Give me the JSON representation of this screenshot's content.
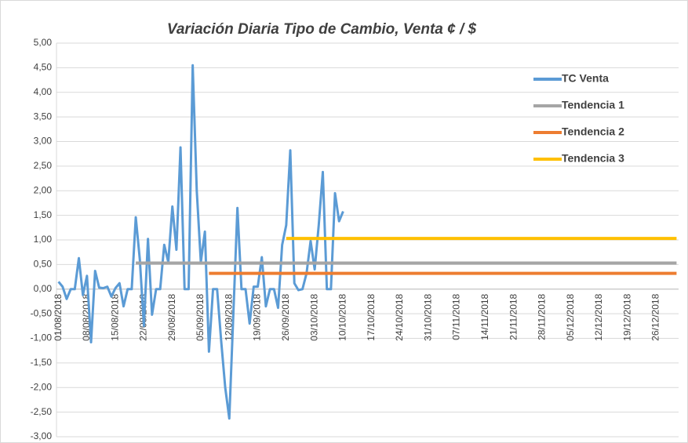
{
  "chart_data": {
    "type": "line",
    "title": "Variación Diaria Tipo de Cambio, Venta ¢ / $",
    "categories": [
      "01/08/2018",
      null,
      null,
      null,
      null,
      null,
      null,
      "08/08/2018",
      null,
      null,
      null,
      null,
      null,
      null,
      "15/08/2018",
      null,
      null,
      null,
      null,
      null,
      null,
      "22/08/2018",
      null,
      null,
      null,
      null,
      null,
      null,
      "29/08/2018",
      null,
      null,
      null,
      null,
      null,
      null,
      "05/09/2018",
      null,
      null,
      null,
      null,
      null,
      null,
      "12/09/2018",
      null,
      null,
      null,
      null,
      null,
      null,
      "19/09/2018",
      null,
      null,
      null,
      null,
      null,
      null,
      "26/09/2018",
      null,
      null,
      null,
      null,
      null,
      null,
      "03/10/2018",
      null,
      null,
      null,
      null,
      null,
      null,
      "10/10/2018",
      null,
      null,
      null,
      null,
      null,
      null,
      "17/10/2018",
      null,
      null,
      null,
      null,
      null,
      null,
      "24/10/2018",
      null,
      null,
      null,
      null,
      null,
      null,
      "31/10/2018",
      null,
      null,
      null,
      null,
      null,
      null,
      "07/11/2018",
      null,
      null,
      null,
      null,
      null,
      null,
      "14/11/2018",
      null,
      null,
      null,
      null,
      null,
      null,
      "21/11/2018",
      null,
      null,
      null,
      null,
      null,
      null,
      "28/11/2018",
      null,
      null,
      null,
      null,
      null,
      null,
      "05/12/2018",
      null,
      null,
      null,
      null,
      null,
      null,
      "12/12/2018",
      null,
      null,
      null,
      null,
      null,
      null,
      "19/12/2018",
      null,
      null,
      null,
      null,
      null,
      null,
      "26/12/2018",
      null,
      null,
      null,
      null,
      null
    ],
    "series": [
      {
        "name": "TC Venta",
        "color": "#5b9bd5",
        "values": [
          0.15,
          0.05,
          -0.2,
          0,
          0,
          0.63,
          -0.12,
          0.27,
          -1.08,
          0.37,
          0.03,
          0.02,
          0.05,
          -0.15,
          0.02,
          0.12,
          -0.35,
          0,
          0,
          1.46,
          0.6,
          -0.75,
          1.02,
          -0.52,
          0,
          0,
          0.9,
          0.55,
          1.68,
          0.8,
          2.88,
          0,
          0,
          4.55,
          2.0,
          0.55,
          1.17,
          -1.27,
          0,
          0,
          -1.05,
          -2.0,
          -2.63,
          -0.5,
          1.65,
          0,
          0,
          -0.7,
          0.05,
          0.05,
          0.65,
          -0.35,
          0,
          0,
          -0.38,
          0.9,
          1.3,
          2.82,
          0.12,
          -0.02,
          0,
          0.32,
          0.98,
          0.4,
          1.3,
          2.38,
          0,
          0,
          1.95,
          1.38,
          1.58,
          null,
          null,
          null,
          null,
          null,
          null,
          null,
          null,
          null,
          null,
          null,
          null,
          null,
          null,
          null,
          null,
          null,
          null,
          null,
          null,
          null,
          null,
          null,
          null,
          null,
          null,
          null,
          null,
          null,
          null,
          null,
          null,
          null,
          null,
          null,
          null,
          null,
          null,
          null,
          null,
          null,
          null,
          null,
          null,
          null,
          null,
          null,
          null,
          null,
          null,
          null,
          null,
          null,
          null,
          null,
          null,
          null,
          null,
          null,
          null,
          null,
          null,
          null,
          null,
          null,
          null,
          null,
          null,
          null,
          null,
          null,
          null,
          null,
          null,
          null,
          null,
          null,
          null,
          null,
          null,
          null,
          null
        ]
      },
      {
        "name": "Tendencia 1",
        "color": "#a5a5a5",
        "values": [
          null,
          null,
          null,
          null,
          null,
          null,
          null,
          null,
          null,
          null,
          null,
          null,
          null,
          null,
          null,
          null,
          null,
          null,
          null,
          0.53,
          0.53,
          0.53,
          0.53,
          0.53,
          0.53,
          0.53,
          0.53,
          0.53,
          0.53,
          0.53,
          0.53,
          0.53,
          0.53,
          0.53,
          0.53,
          0.53,
          0.53,
          0.53,
          0.53,
          0.53,
          0.53,
          0.53,
          0.53,
          0.53,
          0.53,
          0.53,
          0.53,
          0.53,
          0.53,
          0.53,
          0.53,
          0.53,
          0.53,
          0.53,
          0.53,
          0.53,
          0.53,
          0.53,
          0.53,
          0.53,
          0.53,
          0.53,
          0.53,
          0.53,
          0.53,
          0.53,
          0.53,
          0.53,
          0.53,
          0.53,
          0.53,
          0.53,
          0.53,
          0.53,
          0.53,
          0.53,
          0.53,
          0.53,
          0.53,
          0.53,
          0.53,
          0.53,
          0.53,
          0.53,
          0.53,
          0.53,
          0.53,
          0.53,
          0.53,
          0.53,
          0.53,
          0.53,
          0.53,
          0.53,
          0.53,
          0.53,
          0.53,
          0.53,
          0.53,
          0.53,
          0.53,
          0.53,
          0.53,
          0.53,
          0.53,
          0.53,
          0.53,
          0.53,
          0.53,
          0.53,
          0.53,
          0.53,
          0.53,
          0.53,
          0.53,
          0.53,
          0.53,
          0.53,
          0.53,
          0.53,
          0.53,
          0.53,
          0.53,
          0.53,
          0.53,
          0.53,
          0.53,
          0.53,
          0.53,
          0.53,
          0.53,
          0.53,
          0.53,
          0.53,
          0.53,
          0.53,
          0.53,
          0.53,
          0.53,
          0.53,
          0.53,
          0.53,
          0.53,
          0.53,
          0.53,
          0.53,
          0.53,
          0.53,
          0.53,
          0.53,
          0.53,
          0.53,
          0.53
        ]
      },
      {
        "name": "Tendencia 2",
        "color": "#ed7d31",
        "values": [
          null,
          null,
          null,
          null,
          null,
          null,
          null,
          null,
          null,
          null,
          null,
          null,
          null,
          null,
          null,
          null,
          null,
          null,
          null,
          null,
          null,
          null,
          null,
          null,
          null,
          null,
          null,
          null,
          null,
          null,
          null,
          null,
          null,
          null,
          null,
          null,
          null,
          0.32,
          0.32,
          0.32,
          0.32,
          0.32,
          0.32,
          0.32,
          0.32,
          0.32,
          0.32,
          0.32,
          0.32,
          0.32,
          0.32,
          0.32,
          0.32,
          0.32,
          0.32,
          0.32,
          0.32,
          0.32,
          0.32,
          0.32,
          0.32,
          0.32,
          0.32,
          0.32,
          0.32,
          0.32,
          0.32,
          0.32,
          0.32,
          0.32,
          0.32,
          0.32,
          0.32,
          0.32,
          0.32,
          0.32,
          0.32,
          0.32,
          0.32,
          0.32,
          0.32,
          0.32,
          0.32,
          0.32,
          0.32,
          0.32,
          0.32,
          0.32,
          0.32,
          0.32,
          0.32,
          0.32,
          0.32,
          0.32,
          0.32,
          0.32,
          0.32,
          0.32,
          0.32,
          0.32,
          0.32,
          0.32,
          0.32,
          0.32,
          0.32,
          0.32,
          0.32,
          0.32,
          0.32,
          0.32,
          0.32,
          0.32,
          0.32,
          0.32,
          0.32,
          0.32,
          0.32,
          0.32,
          0.32,
          0.32,
          0.32,
          0.32,
          0.32,
          0.32,
          0.32,
          0.32,
          0.32,
          0.32,
          0.32,
          0.32,
          0.32,
          0.32,
          0.32,
          0.32,
          0.32,
          0.32,
          0.32,
          0.32,
          0.32,
          0.32,
          0.32,
          0.32,
          0.32,
          0.32,
          0.32,
          0.32,
          0.32,
          0.32,
          0.32,
          0.32,
          0.32,
          0.32,
          0.32
        ]
      },
      {
        "name": "Tendencia 3",
        "color": "#ffc000",
        "values": [
          null,
          null,
          null,
          null,
          null,
          null,
          null,
          null,
          null,
          null,
          null,
          null,
          null,
          null,
          null,
          null,
          null,
          null,
          null,
          null,
          null,
          null,
          null,
          null,
          null,
          null,
          null,
          null,
          null,
          null,
          null,
          null,
          null,
          null,
          null,
          null,
          null,
          null,
          null,
          null,
          null,
          null,
          null,
          null,
          null,
          null,
          null,
          null,
          null,
          null,
          null,
          null,
          null,
          null,
          null,
          null,
          1.03,
          1.03,
          1.03,
          1.03,
          1.03,
          1.03,
          1.03,
          1.03,
          1.03,
          1.03,
          1.03,
          1.03,
          1.03,
          1.03,
          1.03,
          1.03,
          1.03,
          1.03,
          1.03,
          1.03,
          1.03,
          1.03,
          1.03,
          1.03,
          1.03,
          1.03,
          1.03,
          1.03,
          1.03,
          1.03,
          1.03,
          1.03,
          1.03,
          1.03,
          1.03,
          1.03,
          1.03,
          1.03,
          1.03,
          1.03,
          1.03,
          1.03,
          1.03,
          1.03,
          1.03,
          1.03,
          1.03,
          1.03,
          1.03,
          1.03,
          1.03,
          1.03,
          1.03,
          1.03,
          1.03,
          1.03,
          1.03,
          1.03,
          1.03,
          1.03,
          1.03,
          1.03,
          1.03,
          1.03,
          1.03,
          1.03,
          1.03,
          1.03,
          1.03,
          1.03,
          1.03,
          1.03,
          1.03,
          1.03,
          1.03,
          1.03,
          1.03,
          1.03,
          1.03,
          1.03,
          1.03,
          1.03,
          1.03,
          1.03,
          1.03,
          1.03,
          1.03,
          1.03,
          1.03,
          1.03,
          1.03,
          1.03,
          1.03,
          1.03,
          1.03,
          1.03,
          1.03
        ]
      }
    ],
    "ylim": [
      -3,
      5
    ],
    "yticks": [
      {
        "value": 5,
        "label": "5,00"
      },
      {
        "value": 4.5,
        "label": "4,50"
      },
      {
        "value": 4,
        "label": "4,00"
      },
      {
        "value": 3.5,
        "label": "3,50"
      },
      {
        "value": 3,
        "label": "3,00"
      },
      {
        "value": 2.5,
        "label": "2,50"
      },
      {
        "value": 2,
        "label": "2,00"
      },
      {
        "value": 1.5,
        "label": "1,50"
      },
      {
        "value": 1,
        "label": "1,00"
      },
      {
        "value": 0.5,
        "label": "0,50"
      },
      {
        "value": 0,
        "label": "0,00"
      },
      {
        "value": -0.5,
        "label": "-0,50"
      },
      {
        "value": -1,
        "label": "-1,00"
      },
      {
        "value": -1.5,
        "label": "-1,50"
      },
      {
        "value": -2,
        "label": "-2,00"
      },
      {
        "value": -2.5,
        "label": "-2,50"
      },
      {
        "value": -3,
        "label": "-3,00"
      }
    ],
    "grid": true,
    "legend": "upper right"
  }
}
